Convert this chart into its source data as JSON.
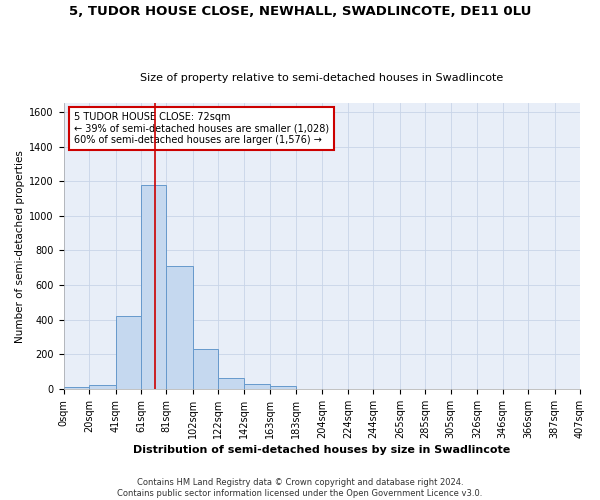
{
  "title": "5, TUDOR HOUSE CLOSE, NEWHALL, SWADLINCOTE, DE11 0LU",
  "subtitle": "Size of property relative to semi-detached houses in Swadlincote",
  "xlabel": "Distribution of semi-detached houses by size in Swadlincote",
  "ylabel": "Number of semi-detached properties",
  "footer_line1": "Contains HM Land Registry data © Crown copyright and database right 2024.",
  "footer_line2": "Contains public sector information licensed under the Open Government Licence v3.0.",
  "bin_edges": [
    0,
    20,
    41,
    61,
    81,
    102,
    122,
    142,
    163,
    183,
    204,
    224,
    244,
    265,
    285,
    305,
    326,
    346,
    366,
    387,
    407
  ],
  "bar_heights": [
    10,
    25,
    420,
    1180,
    710,
    228,
    65,
    28,
    18,
    0,
    0,
    0,
    0,
    0,
    0,
    0,
    0,
    0,
    0,
    0
  ],
  "bar_color": "#c5d8ef",
  "bar_edge_color": "#6699cc",
  "property_size": 72,
  "vline_color": "#cc0000",
  "ylim": [
    0,
    1650
  ],
  "yticks": [
    0,
    200,
    400,
    600,
    800,
    1000,
    1200,
    1400,
    1600
  ],
  "annotation_title": "5 TUDOR HOUSE CLOSE: 72sqm",
  "annotation_line2": "← 39% of semi-detached houses are smaller (1,028)",
  "annotation_line3": "60% of semi-detached houses are larger (1,576) →",
  "annotation_box_color": "#ffffff",
  "annotation_box_edge_color": "#cc0000",
  "grid_color": "#c8d4e8",
  "bg_color": "#e8eef8",
  "fig_bg_color": "#ffffff",
  "title_fontsize": 9.5,
  "subtitle_fontsize": 8,
  "ylabel_fontsize": 7.5,
  "xlabel_fontsize": 8,
  "tick_fontsize": 7,
  "annotation_fontsize": 7,
  "footer_fontsize": 6
}
